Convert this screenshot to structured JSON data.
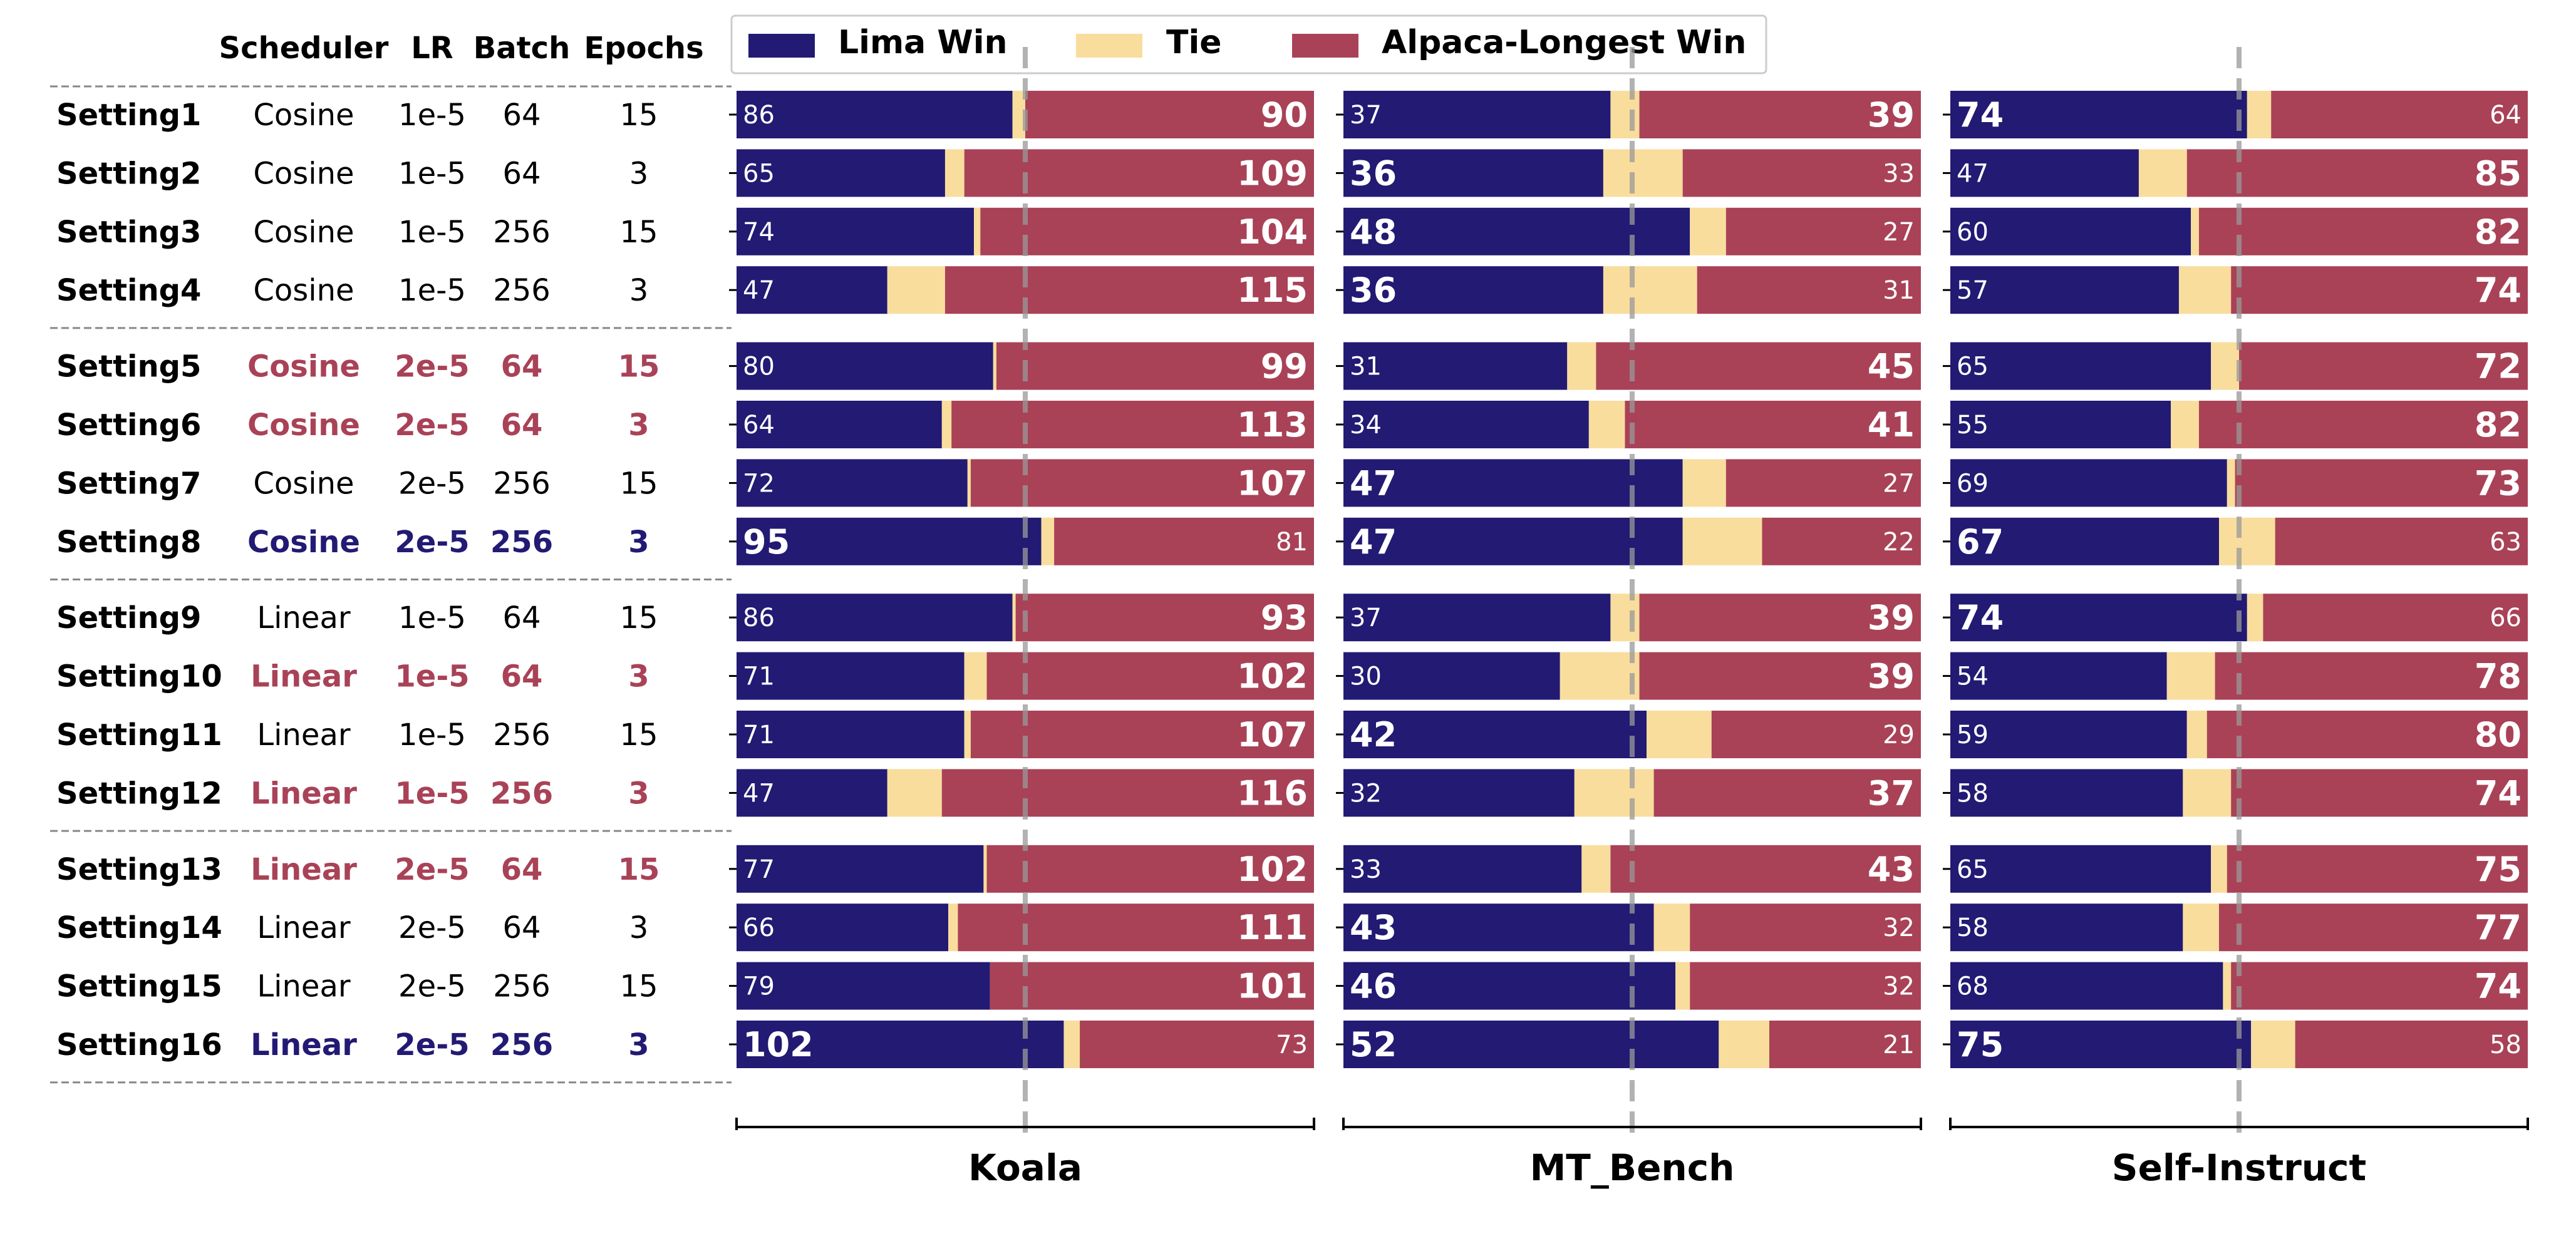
{
  "chart_data": {
    "type": "bar",
    "orientation": "horizontal",
    "stacked": true,
    "colors": {
      "win": "#221a73",
      "tie": "#f9dd9d",
      "lose": "#a94257",
      "highlight_red": "#a94257",
      "highlight_blue": "#221a73"
    },
    "legend": {
      "position": "top",
      "entries": [
        "Lima Win",
        "Tie",
        "Alpaca-Longest Win"
      ]
    },
    "table_headers": [
      "Scheduler",
      "LR",
      "Batch",
      "Epochs"
    ],
    "settings": [
      {
        "name": "Setting1",
        "scheduler": "Cosine",
        "lr": "1e-5",
        "batch": "64",
        "epochs": "15",
        "highlight": "none"
      },
      {
        "name": "Setting2",
        "scheduler": "Cosine",
        "lr": "1e-5",
        "batch": "64",
        "epochs": "3",
        "highlight": "none"
      },
      {
        "name": "Setting3",
        "scheduler": "Cosine",
        "lr": "1e-5",
        "batch": "256",
        "epochs": "15",
        "highlight": "none"
      },
      {
        "name": "Setting4",
        "scheduler": "Cosine",
        "lr": "1e-5",
        "batch": "256",
        "epochs": "3",
        "highlight": "none"
      },
      {
        "name": "Setting5",
        "scheduler": "Cosine",
        "lr": "2e-5",
        "batch": "64",
        "epochs": "15",
        "highlight": "red"
      },
      {
        "name": "Setting6",
        "scheduler": "Cosine",
        "lr": "2e-5",
        "batch": "64",
        "epochs": "3",
        "highlight": "red"
      },
      {
        "name": "Setting7",
        "scheduler": "Cosine",
        "lr": "2e-5",
        "batch": "256",
        "epochs": "15",
        "highlight": "none"
      },
      {
        "name": "Setting8",
        "scheduler": "Cosine",
        "lr": "2e-5",
        "batch": "256",
        "epochs": "3",
        "highlight": "blue"
      },
      {
        "name": "Setting9",
        "scheduler": "Linear",
        "lr": "1e-5",
        "batch": "64",
        "epochs": "15",
        "highlight": "none"
      },
      {
        "name": "Setting10",
        "scheduler": "Linear",
        "lr": "1e-5",
        "batch": "64",
        "epochs": "3",
        "highlight": "red"
      },
      {
        "name": "Setting11",
        "scheduler": "Linear",
        "lr": "1e-5",
        "batch": "256",
        "epochs": "15",
        "highlight": "none"
      },
      {
        "name": "Setting12",
        "scheduler": "Linear",
        "lr": "1e-5",
        "batch": "256",
        "epochs": "3",
        "highlight": "red"
      },
      {
        "name": "Setting13",
        "scheduler": "Linear",
        "lr": "2e-5",
        "batch": "64",
        "epochs": "15",
        "highlight": "red"
      },
      {
        "name": "Setting14",
        "scheduler": "Linear",
        "lr": "2e-5",
        "batch": "64",
        "epochs": "3",
        "highlight": "none"
      },
      {
        "name": "Setting15",
        "scheduler": "Linear",
        "lr": "2e-5",
        "batch": "256",
        "epochs": "15",
        "highlight": "none"
      },
      {
        "name": "Setting16",
        "scheduler": "Linear",
        "lr": "2e-5",
        "batch": "256",
        "epochs": "3",
        "highlight": "blue"
      }
    ],
    "panels": [
      {
        "name": "Koala",
        "total": 180,
        "win": [
          86,
          65,
          74,
          47,
          80,
          64,
          72,
          95,
          86,
          71,
          71,
          47,
          77,
          66,
          79,
          102
        ],
        "tie": [
          4,
          6,
          2,
          18,
          1,
          3,
          1,
          4,
          1,
          7,
          2,
          17,
          1,
          3,
          0,
          5
        ],
        "lose": [
          90,
          109,
          104,
          115,
          99,
          113,
          107,
          81,
          93,
          102,
          107,
          116,
          102,
          111,
          101,
          73
        ]
      },
      {
        "name": "MT_Bench",
        "total": 80,
        "win": [
          37,
          36,
          48,
          36,
          31,
          34,
          47,
          47,
          37,
          30,
          42,
          32,
          33,
          43,
          46,
          52
        ],
        "tie": [
          4,
          11,
          5,
          13,
          4,
          5,
          6,
          11,
          4,
          11,
          9,
          11,
          4,
          5,
          2,
          7
        ],
        "lose": [
          39,
          33,
          27,
          31,
          45,
          41,
          27,
          22,
          39,
          39,
          29,
          37,
          43,
          32,
          32,
          21
        ]
      },
      {
        "name": "Self-Instruct",
        "total": 144,
        "win": [
          74,
          47,
          60,
          57,
          65,
          55,
          69,
          67,
          74,
          54,
          59,
          58,
          65,
          58,
          68,
          75
        ],
        "tie": [
          6,
          12,
          2,
          13,
          7,
          7,
          2,
          14,
          4,
          12,
          5,
          12,
          4,
          9,
          2,
          11
        ],
        "lose": [
          64,
          85,
          82,
          74,
          72,
          82,
          73,
          63,
          66,
          78,
          80,
          74,
          75,
          77,
          74,
          58
        ]
      }
    ]
  }
}
